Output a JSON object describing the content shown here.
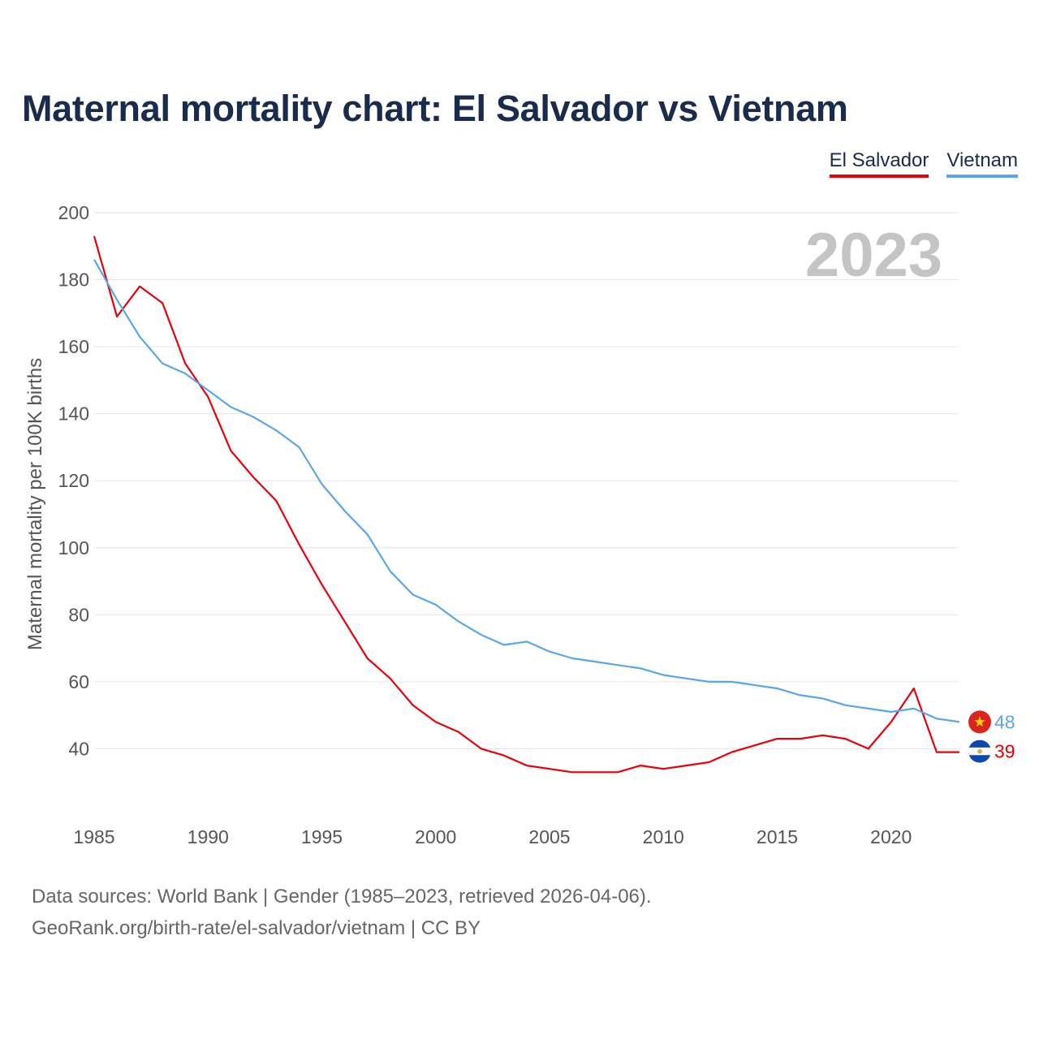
{
  "chart_data": {
    "type": "line",
    "title": "Maternal mortality chart: El Salvador vs Vietnam",
    "ylabel": "Maternal mortality per 100K births",
    "xlabel": "",
    "year_label": "2023",
    "xlim": [
      1985,
      2023
    ],
    "ylim": [
      20,
      200
    ],
    "x_ticks": [
      1985,
      1990,
      1995,
      2000,
      2005,
      2010,
      2015,
      2020
    ],
    "y_ticks": [
      40,
      60,
      80,
      100,
      120,
      140,
      160,
      180,
      200
    ],
    "grid": true,
    "legend_position": "top-right",
    "x": [
      1985,
      1986,
      1987,
      1988,
      1989,
      1990,
      1991,
      1992,
      1993,
      1994,
      1995,
      1996,
      1997,
      1998,
      1999,
      2000,
      2001,
      2002,
      2003,
      2004,
      2005,
      2006,
      2007,
      2008,
      2009,
      2010,
      2011,
      2012,
      2013,
      2014,
      2015,
      2016,
      2017,
      2018,
      2019,
      2020,
      2021,
      2022,
      2023
    ],
    "series": [
      {
        "name": "El Salvador",
        "color": "#e8000b",
        "end_label": "39",
        "flag_icon": "el-salvador-flag-icon",
        "values": [
          193,
          169,
          178,
          173,
          155,
          145,
          129,
          121,
          114,
          101,
          89,
          78,
          67,
          61,
          53,
          48,
          45,
          40,
          38,
          35,
          34,
          33,
          33,
          33,
          35,
          34,
          35,
          36,
          39,
          41,
          43,
          43,
          44,
          43,
          40,
          48,
          58,
          39,
          39
        ]
      },
      {
        "name": "Vietnam",
        "color": "#5aa6e8",
        "end_label": "48",
        "flag_icon": "vietnam-flag-icon",
        "values": [
          186,
          174,
          163,
          155,
          152,
          147,
          142,
          139,
          135,
          130,
          119,
          111,
          104,
          93,
          86,
          83,
          78,
          74,
          71,
          72,
          69,
          67,
          66,
          65,
          64,
          62,
          61,
          60,
          60,
          59,
          58,
          56,
          55,
          53,
          52,
          51,
          52,
          49,
          48
        ]
      }
    ]
  },
  "source": {
    "line1": "Data sources: World Bank | Gender (1985–2023, retrieved 2026-04-06).",
    "line2": "GeoRank.org/birth-rate/el-salvador/vietnam | CC BY"
  }
}
